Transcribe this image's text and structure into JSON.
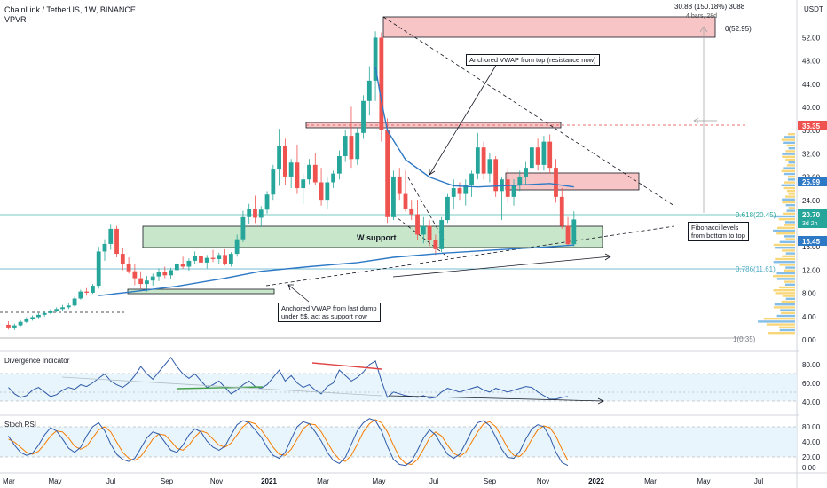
{
  "header": {
    "title": "ChainLink / TetherUS, 1W, BINANCE",
    "indicator": "VPVR",
    "measure_line1": "30.88 (150.18%) 3088",
    "measure_line2": "4 bars, 28d",
    "currency": "USDT"
  },
  "chart_data": [
    {
      "type": "candlestick",
      "title": "ChainLink / TetherUS, 1W, BINANCE",
      "ylim": [
        0,
        55
      ],
      "y_ticks": [
        0,
        4,
        8,
        12,
        16,
        20,
        24,
        28,
        32,
        36,
        40,
        44,
        48,
        52
      ],
      "y_tick_labels": [
        "0.00",
        "4.00",
        "8.00",
        "12.00",
        "16.00",
        "20.00",
        "24.00",
        "28.00",
        "32.00",
        "36.00",
        "40.00",
        "44.00",
        "48.00",
        "52.00"
      ],
      "x_labels": [
        "Mar",
        "May",
        "Jul",
        "Sep",
        "Nov",
        "2021",
        "Mar",
        "May",
        "Jul",
        "Sep",
        "Nov",
        "2022",
        "Mar",
        "May",
        "Jul"
      ],
      "candles": [
        [
          2.6,
          3.2,
          1.8,
          2.0
        ],
        [
          2.0,
          2.8,
          1.7,
          2.5
        ],
        [
          2.5,
          3.4,
          2.3,
          3.1
        ],
        [
          3.1,
          3.9,
          2.9,
          3.6
        ],
        [
          3.6,
          4.2,
          3.3,
          3.9
        ],
        [
          3.9,
          4.6,
          3.7,
          4.3
        ],
        [
          4.3,
          4.9,
          4.0,
          4.6
        ],
        [
          4.6,
          5.3,
          4.4,
          4.9
        ],
        [
          4.9,
          5.6,
          4.7,
          5.3
        ],
        [
          5.3,
          6.0,
          5.0,
          5.6
        ],
        [
          5.6,
          6.3,
          5.3,
          5.9
        ],
        [
          5.9,
          7.4,
          5.7,
          7.1
        ],
        [
          7.1,
          8.6,
          6.9,
          8.3
        ],
        [
          8.3,
          8.9,
          7.6,
          8.1
        ],
        [
          8.1,
          9.6,
          7.9,
          9.3
        ],
        [
          9.3,
          16.0,
          8.8,
          15.2
        ],
        [
          15.2,
          17.3,
          13.6,
          16.5
        ],
        [
          16.5,
          19.8,
          15.5,
          19.1
        ],
        [
          19.1,
          19.6,
          14.2,
          14.8
        ],
        [
          14.8,
          15.8,
          12.0,
          13.0
        ],
        [
          13.0,
          14.2,
          11.4,
          11.8
        ],
        [
          11.8,
          13.0,
          9.4,
          10.6
        ],
        [
          10.6,
          11.8,
          8.8,
          9.6
        ],
        [
          9.6,
          11.0,
          8.3,
          10.2
        ],
        [
          10.2,
          11.4,
          9.3,
          10.9
        ],
        [
          10.9,
          12.3,
          10.1,
          11.6
        ],
        [
          11.6,
          12.6,
          10.6,
          11.1
        ],
        [
          11.1,
          12.4,
          10.4,
          12.0
        ],
        [
          12.0,
          13.5,
          11.4,
          13.1
        ],
        [
          13.1,
          14.3,
          12.2,
          12.6
        ],
        [
          12.6,
          14.0,
          11.9,
          13.6
        ],
        [
          13.6,
          15.2,
          13.0,
          14.5
        ],
        [
          14.5,
          15.3,
          12.9,
          13.3
        ],
        [
          13.3,
          14.6,
          12.3,
          14.1
        ],
        [
          14.1,
          15.5,
          13.4,
          13.9
        ],
        [
          13.9,
          15.0,
          13.1,
          14.6
        ],
        [
          14.6,
          15.6,
          12.8,
          13.0
        ],
        [
          13.0,
          15.1,
          12.6,
          14.8
        ],
        [
          14.8,
          18.1,
          14.3,
          17.3
        ],
        [
          17.3,
          22.2,
          16.8,
          21.1
        ],
        [
          21.1,
          23.4,
          19.9,
          22.5
        ],
        [
          22.5,
          24.8,
          20.1,
          21.0
        ],
        [
          21.0,
          23.0,
          19.4,
          22.4
        ],
        [
          22.4,
          25.6,
          21.7,
          25.0
        ],
        [
          25.0,
          30.1,
          24.1,
          29.3
        ],
        [
          29.3,
          36.3,
          26.5,
          33.4
        ],
        [
          33.4,
          34.6,
          26.6,
          28.1
        ],
        [
          28.1,
          31.1,
          26.1,
          30.5
        ],
        [
          30.5,
          33.6,
          25.1,
          26.1
        ],
        [
          26.1,
          28.6,
          23.4,
          27.6
        ],
        [
          27.6,
          31.1,
          26.8,
          30.1
        ],
        [
          30.1,
          32.1,
          26.6,
          27.1
        ],
        [
          27.1,
          29.6,
          23.1,
          24.1
        ],
        [
          24.1,
          28.1,
          22.6,
          27.1
        ],
        [
          27.1,
          29.1,
          26.1,
          28.6
        ],
        [
          28.6,
          32.6,
          27.6,
          31.6
        ],
        [
          31.6,
          36.1,
          30.6,
          35.1
        ],
        [
          35.1,
          40.1,
          29.6,
          31.1
        ],
        [
          31.1,
          36.6,
          30.1,
          35.6
        ],
        [
          35.6,
          42.1,
          34.6,
          41.1
        ],
        [
          41.1,
          47.1,
          38.6,
          44.6
        ],
        [
          44.6,
          53.1,
          41.1,
          52.0
        ],
        [
          52.0,
          52.9,
          34.1,
          36.1
        ],
        [
          36.1,
          38.1,
          20.1,
          21.1
        ],
        [
          21.1,
          29.1,
          20.6,
          28.1
        ],
        [
          28.1,
          29.6,
          24.1,
          25.1
        ],
        [
          25.1,
          29.1,
          22.1,
          22.6
        ],
        [
          22.6,
          24.1,
          20.6,
          21.6
        ],
        [
          21.6,
          24.1,
          17.1,
          18.1
        ],
        [
          18.1,
          21.1,
          16.6,
          19.6
        ],
        [
          19.6,
          20.6,
          16.1,
          17.1
        ],
        [
          17.1,
          18.1,
          14.6,
          15.6
        ],
        [
          15.6,
          21.1,
          15.1,
          20.6
        ],
        [
          20.6,
          25.1,
          20.1,
          24.6
        ],
        [
          24.6,
          27.6,
          22.6,
          26.1
        ],
        [
          26.1,
          27.1,
          24.1,
          25.1
        ],
        [
          25.1,
          27.6,
          23.1,
          26.6
        ],
        [
          26.6,
          29.1,
          24.6,
          28.6
        ],
        [
          28.6,
          35.6,
          27.6,
          33.1
        ],
        [
          33.1,
          34.1,
          27.6,
          28.6
        ],
        [
          28.6,
          32.1,
          27.1,
          31.1
        ],
        [
          31.1,
          31.6,
          24.6,
          25.6
        ],
        [
          25.6,
          28.1,
          20.6,
          27.6
        ],
        [
          27.6,
          29.6,
          23.6,
          24.6
        ],
        [
          24.6,
          27.6,
          23.1,
          26.6
        ],
        [
          26.6,
          29.1,
          25.6,
          28.1
        ],
        [
          28.1,
          30.6,
          26.6,
          29.6
        ],
        [
          29.6,
          34.1,
          28.6,
          33.1
        ],
        [
          33.1,
          34.6,
          29.1,
          30.1
        ],
        [
          30.1,
          35.1,
          29.1,
          34.1
        ],
        [
          34.1,
          35.35,
          28.6,
          29.6
        ],
        [
          29.6,
          31.1,
          23.6,
          24.6
        ],
        [
          24.6,
          26.1,
          19.1,
          19.6
        ],
        [
          19.6,
          21.1,
          16.1,
          16.45
        ],
        [
          16.45,
          22.1,
          16.1,
          20.7
        ]
      ],
      "vwap_from_last_dump": [
        [
          15,
          7.6
        ],
        [
          20,
          8.2
        ],
        [
          28,
          9.2
        ],
        [
          36,
          10.6
        ],
        [
          42,
          11.8
        ],
        [
          50,
          12.6
        ],
        [
          58,
          13.3
        ],
        [
          64,
          14.2
        ],
        [
          72,
          14.9
        ],
        [
          80,
          15.4
        ],
        [
          88,
          15.9
        ],
        [
          94,
          16.3
        ]
      ],
      "vwap_from_top": [
        [
          61,
          47.0
        ],
        [
          62,
          41.0
        ],
        [
          63,
          36.0
        ],
        [
          66,
          31.0
        ],
        [
          70,
          28.0
        ],
        [
          74,
          26.5
        ],
        [
          78,
          26.3
        ],
        [
          84,
          26.6
        ],
        [
          90,
          26.9
        ],
        [
          94,
          26.3
        ]
      ],
      "levels": {
        "current": "20.70",
        "countdown": "3d 2h",
        "resistance": "35.35",
        "vwap_top": "25.99",
        "vwap_bottom": "16.45"
      },
      "fib_labels": [
        "0(52.95)",
        "0.618(20.45)",
        "0.786(11.61)",
        "1(0.35)"
      ],
      "annotations": {
        "w_support": "W support",
        "vwap_top_note": "Anchored VWAP from top (resistance now)",
        "vwap_bottom_note": "Anchored VWAP from last dump\nunder 5$, act as support now",
        "fib_note": "Fibonacci levels\nfrom bottom to top"
      }
    },
    {
      "type": "line",
      "title": "Divergence Indicator",
      "y_tick_labels": [
        "80.00",
        "60.00",
        "40.00"
      ],
      "values": [
        55,
        48,
        44,
        46,
        52,
        55,
        50,
        45,
        47,
        52,
        55,
        53,
        58,
        56,
        60,
        65,
        70,
        62,
        58,
        55,
        60,
        68,
        78,
        70,
        64,
        72,
        80,
        88,
        78,
        70,
        65,
        70,
        62,
        55,
        58,
        62,
        55,
        48,
        52,
        58,
        62,
        56,
        54,
        58,
        66,
        74,
        62,
        68,
        60,
        55,
        58,
        52,
        48,
        56,
        60,
        74,
        68,
        62,
        66,
        72,
        80,
        84,
        62,
        44,
        50,
        48,
        46,
        45,
        44,
        46,
        43,
        44,
        50,
        54,
        52,
        50,
        52,
        54,
        56,
        52,
        50,
        54,
        52,
        50,
        52,
        54,
        56,
        55,
        50,
        46,
        42,
        42,
        44,
        45
      ]
    },
    {
      "type": "line",
      "title": "Stoch RSI",
      "y_tick_labels": [
        "80.00",
        "40.00",
        "20.00",
        "0.00"
      ],
      "k": [
        62,
        44,
        30,
        24,
        28,
        44,
        64,
        78,
        72,
        56,
        38,
        30,
        40,
        62,
        80,
        88,
        72,
        46,
        26,
        16,
        12,
        18,
        38,
        58,
        70,
        66,
        50,
        34,
        30,
        44,
        64,
        76,
        70,
        52,
        40,
        34,
        42,
        64,
        84,
        92,
        88,
        74,
        60,
        40,
        24,
        18,
        30,
        56,
        80,
        90,
        86,
        70,
        52,
        30,
        14,
        8,
        20,
        46,
        72,
        88,
        96,
        92,
        72,
        42,
        16,
        6,
        4,
        12,
        34,
        58,
        74,
        64,
        44,
        26,
        18,
        26,
        48,
        72,
        88,
        92,
        82,
        60,
        36,
        20,
        18,
        32,
        56,
        76,
        84,
        80,
        60,
        30,
        10,
        4
      ],
      "d": [
        56,
        50,
        40,
        30,
        26,
        32,
        46,
        62,
        72,
        70,
        58,
        42,
        36,
        42,
        58,
        74,
        80,
        70,
        50,
        30,
        18,
        14,
        22,
        38,
        56,
        66,
        64,
        52,
        38,
        34,
        44,
        60,
        72,
        68,
        56,
        44,
        40,
        48,
        64,
        80,
        90,
        86,
        74,
        58,
        40,
        26,
        24,
        36,
        56,
        76,
        86,
        84,
        70,
        50,
        30,
        16,
        12,
        24,
        46,
        70,
        86,
        94,
        88,
        70,
        44,
        20,
        8,
        6,
        16,
        36,
        58,
        70,
        62,
        44,
        28,
        22,
        30,
        50,
        70,
        86,
        90,
        80,
        60,
        38,
        24,
        22,
        34,
        56,
        74,
        82,
        78,
        62,
        36,
        14
      ]
    }
  ]
}
